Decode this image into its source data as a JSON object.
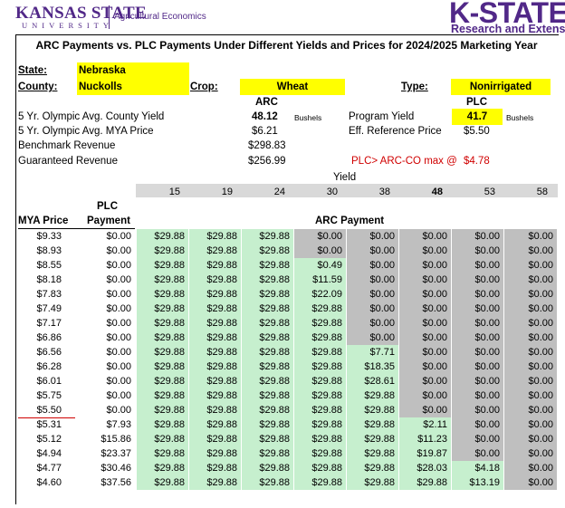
{
  "header": {
    "logo_name": "KANSAS STATE",
    "logo_univ": "UNIVERSITY",
    "dept": "Agricultural Economics",
    "kstate": "K-STATE",
    "research": "Research and Extension"
  },
  "title": "ARC Payments vs. PLC Payments Under Different Yields and Prices for 2024/2025 Marketing Year",
  "info": {
    "state_label": "State:",
    "state": "Nebraska",
    "county_label": "County:",
    "county": "Nuckolls",
    "crop_label": "Crop:",
    "crop": "Wheat",
    "type_label": "Type:",
    "type": "Nonirrigated",
    "arc_head": "ARC",
    "plc_head": "PLC",
    "county_yield_label": "5 Yr. Olympic Avg. County Yield",
    "county_yield": "48.12",
    "bushels": "Bushels",
    "program_yield_label": "Program Yield",
    "program_yield": "41.7",
    "mya_label": "5 Yr. Olympic Avg. MYA Price",
    "mya": "$6.21",
    "ref_label": "Eff. Reference Price",
    "ref": "$5.50",
    "bench_label": "Benchmark Revenue",
    "bench": "$298.83",
    "guar_label": "Guaranteed Revenue",
    "guar": "$256.99",
    "max_label": "PLC> ARC-CO max @",
    "max_val": "$4.78"
  },
  "table": {
    "yield_label": "Yield",
    "yields": [
      "15",
      "19",
      "24",
      "30",
      "38",
      "48",
      "53",
      "58"
    ],
    "col_mya": "MYA Price",
    "col_plc_1": "PLC",
    "col_plc_2": "Payment",
    "col_arc": "ARC Payment",
    "rows": [
      {
        "mya": "$9.33",
        "plc": "$0.00",
        "arc": [
          "$29.88",
          "$29.88",
          "$29.88",
          "$0.00",
          "$0.00",
          "$0.00",
          "$0.00",
          "$0.00"
        ]
      },
      {
        "mya": "$8.93",
        "plc": "$0.00",
        "arc": [
          "$29.88",
          "$29.88",
          "$29.88",
          "$0.00",
          "$0.00",
          "$0.00",
          "$0.00",
          "$0.00"
        ]
      },
      {
        "mya": "$8.55",
        "plc": "$0.00",
        "arc": [
          "$29.88",
          "$29.88",
          "$29.88",
          "$0.49",
          "$0.00",
          "$0.00",
          "$0.00",
          "$0.00"
        ]
      },
      {
        "mya": "$8.18",
        "plc": "$0.00",
        "arc": [
          "$29.88",
          "$29.88",
          "$29.88",
          "$11.59",
          "$0.00",
          "$0.00",
          "$0.00",
          "$0.00"
        ]
      },
      {
        "mya": "$7.83",
        "plc": "$0.00",
        "arc": [
          "$29.88",
          "$29.88",
          "$29.88",
          "$22.09",
          "$0.00",
          "$0.00",
          "$0.00",
          "$0.00"
        ]
      },
      {
        "mya": "$7.49",
        "plc": "$0.00",
        "arc": [
          "$29.88",
          "$29.88",
          "$29.88",
          "$29.88",
          "$0.00",
          "$0.00",
          "$0.00",
          "$0.00"
        ]
      },
      {
        "mya": "$7.17",
        "plc": "$0.00",
        "arc": [
          "$29.88",
          "$29.88",
          "$29.88",
          "$29.88",
          "$0.00",
          "$0.00",
          "$0.00",
          "$0.00"
        ]
      },
      {
        "mya": "$6.86",
        "plc": "$0.00",
        "arc": [
          "$29.88",
          "$29.88",
          "$29.88",
          "$29.88",
          "$0.00",
          "$0.00",
          "$0.00",
          "$0.00"
        ]
      },
      {
        "mya": "$6.56",
        "plc": "$0.00",
        "arc": [
          "$29.88",
          "$29.88",
          "$29.88",
          "$29.88",
          "$7.71",
          "$0.00",
          "$0.00",
          "$0.00"
        ]
      },
      {
        "mya": "$6.28",
        "plc": "$0.00",
        "arc": [
          "$29.88",
          "$29.88",
          "$29.88",
          "$29.88",
          "$18.35",
          "$0.00",
          "$0.00",
          "$0.00"
        ]
      },
      {
        "mya": "$6.01",
        "plc": "$0.00",
        "arc": [
          "$29.88",
          "$29.88",
          "$29.88",
          "$29.88",
          "$28.61",
          "$0.00",
          "$0.00",
          "$0.00"
        ]
      },
      {
        "mya": "$5.75",
        "plc": "$0.00",
        "arc": [
          "$29.88",
          "$29.88",
          "$29.88",
          "$29.88",
          "$29.88",
          "$0.00",
          "$0.00",
          "$0.00"
        ]
      },
      {
        "mya": "$5.50",
        "plc": "$0.00",
        "arc": [
          "$29.88",
          "$29.88",
          "$29.88",
          "$29.88",
          "$29.88",
          "$0.00",
          "$0.00",
          "$0.00"
        ]
      },
      {
        "mya": "$5.31",
        "plc": "$7.93",
        "arc": [
          "$29.88",
          "$29.88",
          "$29.88",
          "$29.88",
          "$29.88",
          "$2.11",
          "$0.00",
          "$0.00"
        ]
      },
      {
        "mya": "$5.12",
        "plc": "$15.86",
        "arc": [
          "$29.88",
          "$29.88",
          "$29.88",
          "$29.88",
          "$29.88",
          "$11.23",
          "$0.00",
          "$0.00"
        ]
      },
      {
        "mya": "$4.94",
        "plc": "$23.37",
        "arc": [
          "$29.88",
          "$29.88",
          "$29.88",
          "$29.88",
          "$29.88",
          "$19.87",
          "$0.00",
          "$0.00"
        ]
      },
      {
        "mya": "$4.77",
        "plc": "$30.46",
        "arc": [
          "$29.88",
          "$29.88",
          "$29.88",
          "$29.88",
          "$29.88",
          "$28.03",
          "$4.18",
          "$0.00"
        ]
      },
      {
        "mya": "$4.60",
        "plc": "$37.56",
        "arc": [
          "$29.88",
          "$29.88",
          "$29.88",
          "$29.88",
          "$29.88",
          "$29.88",
          "$13.19",
          "$0.00"
        ]
      }
    ]
  },
  "colors": {
    "purple": "#512888",
    "yellow": "#ffff00",
    "green": "#c6efce",
    "grey": "#bfbfbf",
    "red": "#d00000"
  }
}
